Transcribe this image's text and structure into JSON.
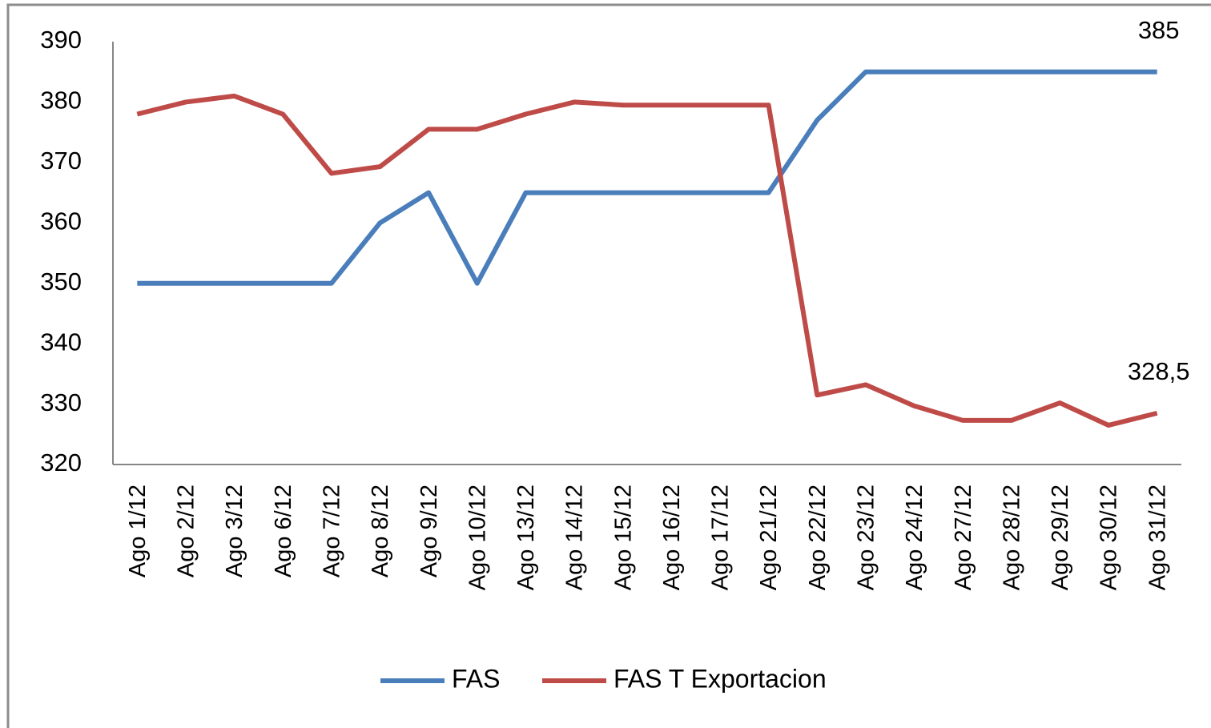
{
  "chart_data": {
    "type": "line",
    "categories": [
      "Ago 1/12",
      "Ago 2/12",
      "Ago 3/12",
      "Ago 6/12",
      "Ago 7/12",
      "Ago 8/12",
      "Ago 9/12",
      "Ago 10/12",
      "Ago 13/12",
      "Ago 14/12",
      "Ago 15/12",
      "Ago 16/12",
      "Ago 17/12",
      "Ago 21/12",
      "Ago 22/12",
      "Ago 23/12",
      "Ago 24/12",
      "Ago 27/12",
      "Ago 28/12",
      "Ago 29/12",
      "Ago 30/12",
      "Ago 31/12"
    ],
    "series": [
      {
        "name": "FAS",
        "color": "#4a7ebb",
        "values": [
          350,
          350,
          350,
          350,
          350,
          360,
          365,
          350,
          365,
          365,
          365,
          365,
          365,
          365,
          377,
          385,
          385,
          385,
          385,
          385,
          385,
          385
        ],
        "value_labels": [
          null,
          null,
          null,
          null,
          null,
          null,
          null,
          null,
          null,
          null,
          null,
          null,
          null,
          null,
          null,
          null,
          null,
          null,
          null,
          null,
          null,
          "385"
        ]
      },
      {
        "name": "FAS T Exportacion",
        "color": "#be4b48",
        "values": [
          378,
          380,
          381,
          378,
          368.2,
          369.3,
          375.5,
          375.5,
          378,
          380,
          379.5,
          379.5,
          379.5,
          379.5,
          331.5,
          333.2,
          329.7,
          327.3,
          327.3,
          330.2,
          326.5,
          328.5
        ],
        "value_labels": [
          null,
          null,
          null,
          null,
          null,
          null,
          null,
          null,
          null,
          null,
          null,
          null,
          null,
          null,
          null,
          null,
          null,
          null,
          null,
          null,
          null,
          "328,5"
        ]
      }
    ],
    "ylim": [
      320,
      390
    ],
    "yticks": [
      320,
      330,
      340,
      350,
      360,
      370,
      380,
      390
    ],
    "grid": false,
    "legend": "bottom"
  }
}
